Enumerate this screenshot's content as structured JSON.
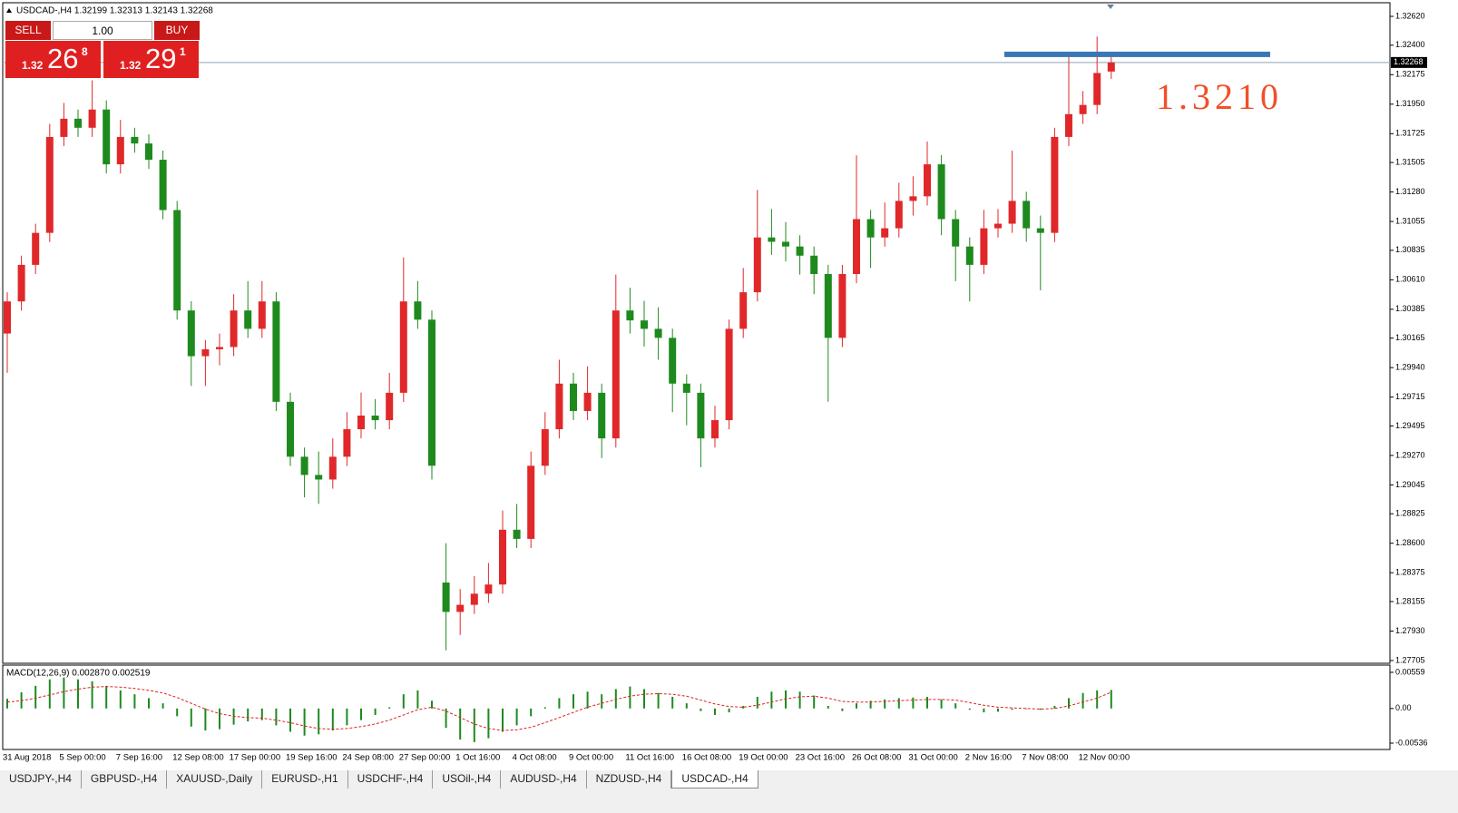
{
  "chart_data": [
    {
      "type": "candlestick",
      "title": "USDCAD-,H4  1.32199 1.32313 1.32143 1.32268",
      "categories": [
        "31 Aug 2018",
        null,
        null,
        null,
        "5 Sep 00:00",
        null,
        null,
        null,
        "7 Sep 16:00",
        null,
        null,
        null,
        "12 Sep 08:00",
        null,
        null,
        null,
        "17 Sep 00:00",
        null,
        null,
        null,
        "19 Sep 16:00",
        null,
        null,
        null,
        "24 Sep 08:00",
        null,
        null,
        null,
        "27 Sep 00:00",
        null,
        null,
        null,
        "1 Oct 16:00",
        null,
        null,
        null,
        "4 Oct 08:00",
        null,
        null,
        null,
        "9 Oct 00:00",
        null,
        null,
        null,
        "11 Oct 16:00",
        null,
        null,
        null,
        "16 Oct 08:00",
        null,
        null,
        null,
        "19 Oct 00:00",
        null,
        null,
        null,
        "23 Oct 16:00",
        null,
        null,
        null,
        "26 Oct 08:00",
        null,
        null,
        null,
        "31 Oct 00:00",
        null,
        null,
        null,
        "2 Nov 16:00",
        null,
        null,
        null,
        "7 Nov 08:00",
        null,
        null,
        null,
        "12 Nov 00:00",
        null,
        null
      ],
      "open": [
        1.302,
        1.30445,
        1.30724,
        1.30968,
        1.317,
        1.31839,
        1.3177,
        1.31909,
        1.31491,
        1.317,
        1.3165,
        1.31526,
        1.31142,
        1.30376,
        1.30027,
        1.3008,
        1.30097,
        1.30376,
        1.30236,
        1.30445,
        1.29679,
        1.2926,
        1.29121,
        1.29086,
        1.2926,
        1.2947,
        1.29574,
        1.29539,
        1.29748,
        1.30445,
        1.30306,
        1.283,
        1.28076,
        1.2813,
        1.28215,
        1.28285,
        1.28703,
        1.28633,
        1.29191,
        1.2947,
        1.29818,
        1.29609,
        1.29748,
        1.294,
        1.30376,
        1.303,
        1.30236,
        1.30167,
        1.29818,
        1.29748,
        1.294,
        1.29539,
        1.30236,
        1.30515,
        1.30933,
        1.309,
        1.30864,
        1.30794,
        1.30654,
        1.30167,
        1.30654,
        1.31073,
        1.30933,
        1.31003,
        1.31212,
        1.31247,
        1.31491,
        1.31073,
        1.30864,
        1.30724,
        1.31003,
        1.31038,
        1.31212,
        1.31003,
        1.30968,
        1.317,
        1.31874,
        1.31944,
        1.32199
      ],
      "high": [
        1.30515,
        1.30794,
        1.31038,
        1.318,
        1.3196,
        1.31909,
        1.32132,
        1.31979,
        1.3183,
        1.3177,
        1.3172,
        1.31596,
        1.31212,
        1.30446,
        1.3015,
        1.302,
        1.305,
        1.306,
        1.306,
        1.30515,
        1.29749,
        1.2933,
        1.293,
        1.294,
        1.296,
        1.2975,
        1.297,
        1.299,
        1.3078,
        1.306,
        1.30376,
        1.286,
        1.2825,
        1.2835,
        1.2845,
        1.2885,
        1.289,
        1.293,
        1.296,
        1.3,
        1.299,
        1.2995,
        1.29818,
        1.3065,
        1.3055,
        1.3045,
        1.304,
        1.30237,
        1.29888,
        1.29818,
        1.2965,
        1.30306,
        1.307,
        1.31296,
        1.3115,
        1.3105,
        1.3095,
        1.30864,
        1.30724,
        1.30724,
        1.3156,
        1.31143,
        1.312,
        1.3135,
        1.314,
        1.31665,
        1.31561,
        1.31143,
        1.30934,
        1.31143,
        1.3115,
        1.31595,
        1.31282,
        1.311,
        1.3177,
        1.32327,
        1.3205,
        1.32466,
        1.32313
      ],
      "low": [
        1.299,
        1.30375,
        1.30654,
        1.30898,
        1.3163,
        1.317,
        1.317,
        1.31421,
        1.31421,
        1.3158,
        1.31456,
        1.31072,
        1.30306,
        1.298,
        1.298,
        1.29957,
        1.30027,
        1.30166,
        1.30166,
        1.29609,
        1.2919,
        1.2895,
        1.289,
        1.29016,
        1.2919,
        1.294,
        1.29469,
        1.29469,
        1.29678,
        1.30236,
        1.29086,
        1.27783,
        1.279,
        1.2806,
        1.28145,
        1.28215,
        1.28563,
        1.28563,
        1.29121,
        1.294,
        1.29539,
        1.29539,
        1.2925,
        1.2933,
        1.302,
        1.301,
        1.3,
        1.296,
        1.295,
        1.2918,
        1.2933,
        1.29469,
        1.30166,
        1.30445,
        1.308,
        1.3075,
        1.3065,
        1.305,
        1.2968,
        1.30097,
        1.30584,
        1.307,
        1.30863,
        1.30933,
        1.311,
        1.31177,
        1.3095,
        1.306,
        1.30445,
        1.30654,
        1.30933,
        1.30968,
        1.309,
        1.3053,
        1.30898,
        1.3163,
        1.318,
        1.31874,
        1.32143
      ],
      "close": [
        1.30445,
        1.30724,
        1.30968,
        1.317,
        1.31839,
        1.3177,
        1.31909,
        1.31491,
        1.317,
        1.3165,
        1.31526,
        1.31142,
        1.30376,
        1.30027,
        1.3008,
        1.30097,
        1.30376,
        1.30236,
        1.30445,
        1.29679,
        1.2926,
        1.29121,
        1.29086,
        1.2926,
        1.2947,
        1.29574,
        1.29539,
        1.29748,
        1.30445,
        1.30306,
        1.29191,
        1.28076,
        1.2813,
        1.28215,
        1.28285,
        1.28703,
        1.28633,
        1.29191,
        1.2947,
        1.29818,
        1.29609,
        1.29748,
        1.294,
        1.30376,
        1.303,
        1.30236,
        1.30167,
        1.29818,
        1.29748,
        1.294,
        1.29539,
        1.30236,
        1.30515,
        1.30933,
        1.309,
        1.30864,
        1.30794,
        1.30654,
        1.30167,
        1.30654,
        1.31073,
        1.30933,
        1.31003,
        1.31212,
        1.31247,
        1.31491,
        1.31073,
        1.30864,
        1.30724,
        1.31003,
        1.31038,
        1.31212,
        1.31003,
        1.30968,
        1.317,
        1.31874,
        1.31944,
        1.32188,
        1.32268
      ],
      "up_color": "#e0282a",
      "down_color": "#1e8a1e",
      "ylim": [
        1.27684,
        1.32724
      ],
      "yticks": [
        {
          "value": 1.3262,
          "label": "1.32620"
        },
        {
          "value": 1.324,
          "label": "1.32400"
        },
        1.32175,
        {
          "value": 1.3195,
          "label": "1.31950"
        },
        1.31725,
        1.31505,
        {
          "value": 1.3128,
          "label": "1.31280"
        },
        1.31055,
        1.30835,
        {
          "value": 1.3061,
          "label": "1.30610"
        },
        1.30385,
        1.30165,
        {
          "value": 1.2994,
          "label": "1.29940"
        },
        1.29715,
        1.29495,
        {
          "value": 1.2927,
          "label": "1.29270"
        },
        1.29045,
        1.28825,
        {
          "value": 1.286,
          "label": "1.28600"
        },
        1.28375,
        1.28155,
        {
          "value": 1.2793,
          "label": "1.27930"
        },
        1.27705
      ],
      "grid": false,
      "bid_line": 1.32268,
      "level_line": {
        "value": 1.3233,
        "color": "#3a78b5"
      },
      "annotation": {
        "text": "1.3210",
        "color": "#f0502a"
      }
    },
    {
      "type": "macd",
      "title": "MACD(12,26,9) 0.002870 0.002519",
      "histogram": {
        "color": "#1e8a1e",
        "values": [
          0.0015,
          0.0025,
          0.0035,
          0.0045,
          0.0048,
          0.0045,
          0.0042,
          0.0035,
          0.0028,
          0.0022,
          0.0016,
          0.0008,
          -0.0012,
          -0.0028,
          -0.0034,
          -0.0032,
          -0.0025,
          -0.002,
          -0.0018,
          -0.0026,
          -0.0036,
          -0.0042,
          -0.004,
          -0.0034,
          -0.0026,
          -0.0018,
          -0.001,
          0.0002,
          0.0022,
          0.0028,
          0.0012,
          -0.003,
          -0.0048,
          -0.0052,
          -0.0046,
          -0.0036,
          -0.0026,
          -0.0012,
          0.0002,
          0.0016,
          0.0022,
          0.0026,
          0.0022,
          0.003,
          0.0034,
          0.003,
          0.0024,
          0.0018,
          0.0008,
          -0.0004,
          -0.001,
          -0.0006,
          0.0004,
          0.0018,
          0.0026,
          0.0028,
          0.0026,
          0.002,
          0.0004,
          -0.0004,
          0.0008,
          0.0012,
          0.0014,
          0.0016,
          0.0017,
          0.0018,
          0.0014,
          0.0008,
          -0.0002,
          -0.0006,
          -0.0005,
          -0.0002,
          -0.0001,
          -0.0002,
          0.0004,
          0.0016,
          0.0024,
          0.0028,
          0.00287
        ]
      },
      "signal": {
        "color": "#e02020",
        "values": [
          0.001,
          0.0012,
          0.0016,
          0.0021,
          0.0026,
          0.003,
          0.0033,
          0.0034,
          0.0033,
          0.0031,
          0.0028,
          0.0024,
          0.0017,
          0.0008,
          -0.0001,
          -0.0008,
          -0.0012,
          -0.0014,
          -0.0015,
          -0.0018,
          -0.0022,
          -0.0027,
          -0.0031,
          -0.0032,
          -0.0031,
          -0.0028,
          -0.0024,
          -0.0018,
          -0.001,
          -0.0002,
          0.0002,
          -0.0004,
          -0.0014,
          -0.0024,
          -0.0031,
          -0.0034,
          -0.0033,
          -0.0029,
          -0.0022,
          -0.0014,
          -0.0006,
          0.0002,
          0.0008,
          0.0014,
          0.0019,
          0.0022,
          0.0023,
          0.0022,
          0.0019,
          0.0013,
          0.0007,
          0.0003,
          0.0002,
          0.0005,
          0.001,
          0.0015,
          0.0018,
          0.0019,
          0.0016,
          0.0011,
          0.001,
          0.001,
          0.0011,
          0.0012,
          0.0013,
          0.0014,
          0.0014,
          0.0013,
          0.0009,
          0.0005,
          0.0002,
          0.0001,
          0,
          -0.0001,
          0,
          0.0004,
          0.001,
          0.0016,
          0.002519
        ]
      },
      "ylim": [
        -0.00634,
        0.00671
      ],
      "yticks": [
        0.00559,
        {
          "value": 0,
          "label": "0.00"
        },
        -0.00536
      ]
    }
  ],
  "trade_panel": {
    "sell": "SELL",
    "buy": "BUY",
    "lots": "1.00",
    "sell_big": "1.32",
    "sell_pips": "26",
    "sell_point": "8",
    "buy_big": "1.32",
    "buy_pips": "29",
    "buy_point": "1"
  },
  "tabs": [
    "USDJPY-,H4",
    "GBPUSD-,H4",
    "XAUUSD-,Daily",
    "EURUSD-,H1",
    "USDCHF-,H4",
    "USOil-,H4",
    "AUDUSD-,H4",
    "NZDUSD-,H4",
    "USDCAD-,H4"
  ],
  "active_tab": 8
}
